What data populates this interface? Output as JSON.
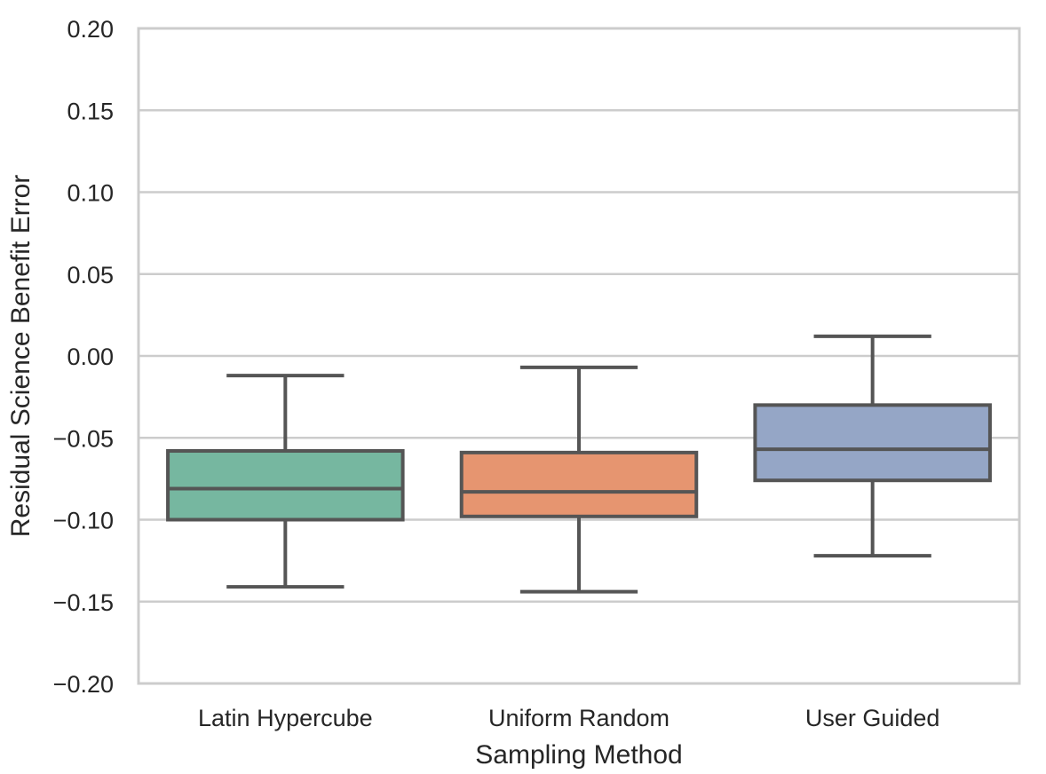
{
  "chart_data": {
    "type": "box",
    "title": "",
    "xlabel": "Sampling Method",
    "ylabel": "Residual Science Benefit Error",
    "ylim": [
      -0.2,
      0.2
    ],
    "yticks": [
      -0.2,
      -0.15,
      -0.1,
      -0.05,
      0.0,
      0.05,
      0.1,
      0.15,
      0.2
    ],
    "ytick_labels": [
      "−0.20",
      "−0.15",
      "−0.10",
      "−0.05",
      "0.00",
      "0.05",
      "0.10",
      "0.15",
      "0.20"
    ],
    "grid": "horizontal",
    "categories": [
      "Latin Hypercube",
      "Uniform Random",
      "User Guided"
    ],
    "boxes": [
      {
        "category": "Latin Hypercube",
        "whisker_low": -0.141,
        "q1": -0.1,
        "median": -0.081,
        "q3": -0.058,
        "whisker_high": -0.012,
        "color": "#76b7a0"
      },
      {
        "category": "Uniform Random",
        "whisker_low": -0.144,
        "q1": -0.098,
        "median": -0.083,
        "q3": -0.059,
        "whisker_high": -0.007,
        "color": "#e69570"
      },
      {
        "category": "User Guided",
        "whisker_low": -0.122,
        "q1": -0.076,
        "median": -0.057,
        "q3": -0.03,
        "whisker_high": 0.012,
        "color": "#95a6c6"
      }
    ]
  }
}
